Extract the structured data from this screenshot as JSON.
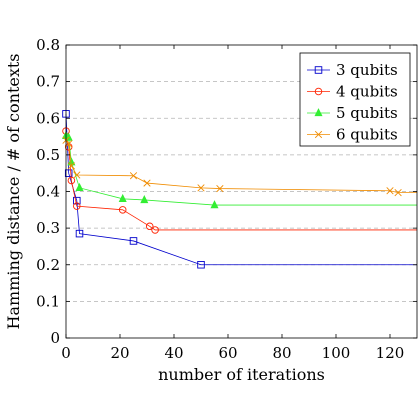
{
  "chart_data": {
    "type": "line",
    "title": "",
    "xlabel": "number of iterations",
    "ylabel": "Hamming distance / # of contexts",
    "xlim": [
      0,
      130
    ],
    "ylim": [
      0,
      0.8
    ],
    "xticks": [
      0,
      20,
      40,
      60,
      80,
      100,
      120
    ],
    "yticks": [
      0,
      0.1,
      0.2,
      0.3,
      0.4,
      0.5,
      0.6,
      0.7,
      0.8
    ],
    "grid": "horizontal dashed",
    "legend": "top-right",
    "series": [
      {
        "name": "3 qubits",
        "color": "#0000cc",
        "marker": "square",
        "x": [
          0,
          1,
          4,
          5,
          25,
          50,
          130
        ],
        "y": [
          0.612,
          0.45,
          0.375,
          0.285,
          0.265,
          0.2,
          0.2
        ],
        "marked": [
          true,
          true,
          true,
          true,
          true,
          true,
          false
        ]
      },
      {
        "name": "4 qubits",
        "color": "#ff2200",
        "marker": "circle",
        "x": [
          0,
          1,
          2,
          4,
          21,
          31,
          33,
          130
        ],
        "y": [
          0.565,
          0.522,
          0.43,
          0.36,
          0.35,
          0.305,
          0.295,
          0.295
        ],
        "marked": [
          true,
          true,
          true,
          true,
          true,
          true,
          true,
          false
        ]
      },
      {
        "name": "5 qubits",
        "color": "#33ee33",
        "marker": "triangle",
        "x": [
          0,
          1,
          2,
          5,
          21,
          29,
          55,
          130
        ],
        "y": [
          0.552,
          0.547,
          0.48,
          0.41,
          0.38,
          0.377,
          0.363,
          0.363
        ],
        "marked": [
          true,
          true,
          true,
          true,
          true,
          true,
          true,
          false
        ]
      },
      {
        "name": "6 qubits",
        "color": "#f08c00",
        "marker": "x",
        "x": [
          0,
          1,
          2,
          4,
          25,
          30,
          50,
          57,
          120,
          123,
          130
        ],
        "y": [
          0.54,
          0.53,
          0.47,
          0.445,
          0.443,
          0.423,
          0.41,
          0.408,
          0.402,
          0.397,
          0.397
        ],
        "marked": [
          true,
          true,
          true,
          true,
          true,
          true,
          true,
          true,
          true,
          true,
          false
        ]
      }
    ]
  }
}
